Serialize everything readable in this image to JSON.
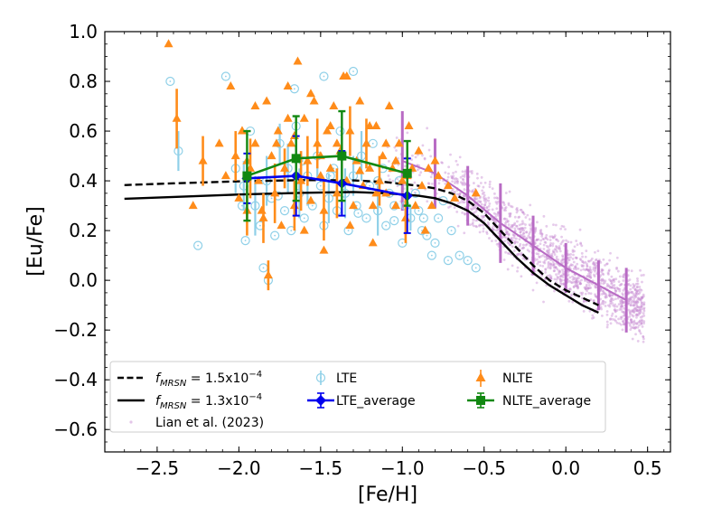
{
  "chart_data": {
    "type": "scatter",
    "xlabel": "[Fe/H]",
    "ylabel": "[Eu/Fe]",
    "xlim": [
      -2.82,
      0.64
    ],
    "ylim": [
      -0.69,
      1.0
    ],
    "xticks": [
      -2.5,
      -2.0,
      -1.5,
      -1.0,
      -0.5,
      0.0,
      0.5
    ],
    "xtick_labels": [
      "−2.5",
      "−2.0",
      "−1.5",
      "−1.0",
      "−0.5",
      "0.0",
      "0.5"
    ],
    "yticks": [
      -0.6,
      -0.4,
      -0.2,
      0.0,
      0.2,
      0.4,
      0.6,
      0.8,
      1.0
    ],
    "ytick_labels": [
      "−0.6",
      "−0.4",
      "−0.2",
      "0.0",
      "0.2",
      "0.4",
      "0.6",
      "0.8",
      "1.0"
    ],
    "legend_position": "lower-left",
    "colors": {
      "lte": "#8fd0e8",
      "nlte": "#ff8c1a",
      "lte_average": "#0000ee",
      "nlte_average": "#118811",
      "lian": "#c88bd2",
      "lian_line": "#b86bc4",
      "model": "#000000"
    },
    "series": [
      {
        "name": "f_MRSN = 1.5x10^-4",
        "legend_prefix": "f",
        "legend_sub": "MRSN",
        "legend_text": " = 1.5x10",
        "legend_sup": "−4",
        "style": "dashed",
        "x": [
          -2.7,
          -2.4,
          -2.0,
          -1.6,
          -1.3,
          -1.1,
          -0.9,
          -0.8,
          -0.7,
          -0.6,
          -0.5,
          -0.4,
          -0.3,
          -0.2,
          -0.1,
          0.0,
          0.1,
          0.2
        ],
        "y": [
          0.383,
          0.39,
          0.398,
          0.403,
          0.402,
          0.395,
          0.38,
          0.37,
          0.35,
          0.32,
          0.27,
          0.2,
          0.13,
          0.06,
          0.0,
          -0.04,
          -0.07,
          -0.1
        ]
      },
      {
        "name": "f_MRSN = 1.3x10^-4",
        "legend_prefix": "f",
        "legend_sub": "MRSN",
        "legend_text": " = 1.3x10",
        "legend_sup": "−4",
        "style": "solid",
        "x": [
          -2.7,
          -2.4,
          -2.0,
          -1.6,
          -1.3,
          -1.1,
          -0.9,
          -0.8,
          -0.7,
          -0.6,
          -0.5,
          -0.4,
          -0.3,
          -0.2,
          -0.1,
          0.0,
          0.1,
          0.2
        ],
        "y": [
          0.328,
          0.335,
          0.345,
          0.352,
          0.355,
          0.35,
          0.34,
          0.33,
          0.31,
          0.28,
          0.23,
          0.16,
          0.09,
          0.03,
          -0.02,
          -0.06,
          -0.1,
          -0.13
        ]
      },
      {
        "name": "Lian et al. (2023)",
        "type": "scatter-cloud",
        "binned_x": [
          -1.0,
          -0.8,
          -0.6,
          -0.4,
          -0.2,
          0.0,
          0.2,
          0.37
        ],
        "binned_y": [
          0.48,
          0.43,
          0.34,
          0.23,
          0.14,
          0.05,
          -0.02,
          -0.08
        ],
        "binned_err": [
          0.2,
          0.14,
          0.12,
          0.16,
          0.12,
          0.1,
          0.1,
          0.13
        ]
      },
      {
        "name": "LTE",
        "type": "scatter-errorbar",
        "marker": "open-circle-dot",
        "x": [
          -2.42,
          -2.37,
          -2.25,
          -2.08,
          -2.02,
          -1.97,
          -1.93,
          -1.9,
          -1.87,
          -1.85,
          -1.83,
          -1.8,
          -1.78,
          -1.75,
          -1.72,
          -1.7,
          -1.68,
          -1.65,
          -1.63,
          -1.6,
          -1.58,
          -1.55,
          -1.52,
          -1.5,
          -1.48,
          -1.45,
          -1.42,
          -1.4,
          -1.38,
          -1.35,
          -1.33,
          -1.3,
          -1.28,
          -1.25,
          -1.22,
          -1.2,
          -1.18,
          -1.15,
          -1.12,
          -1.1,
          -1.08,
          -1.05,
          -1.02,
          -1.0,
          -0.98,
          -0.95,
          -0.92,
          -0.9,
          -0.88,
          -0.85,
          -0.82,
          -0.8,
          -0.78,
          -0.75,
          -0.72,
          -0.7,
          -0.65,
          -0.6,
          -0.55,
          -1.96,
          -1.82,
          -1.66,
          -1.48,
          -1.3,
          -1.15,
          -1.98,
          -1.76,
          -1.61,
          -1.44,
          -1.27,
          -1.05,
          -0.87
        ],
        "y": [
          0.8,
          0.52,
          0.14,
          0.82,
          0.45,
          0.38,
          0.6,
          0.3,
          0.22,
          0.05,
          0.4,
          0.33,
          0.18,
          0.55,
          0.28,
          0.45,
          0.2,
          0.62,
          0.35,
          0.25,
          0.42,
          0.3,
          0.5,
          0.38,
          0.22,
          0.33,
          0.45,
          0.28,
          0.6,
          0.35,
          0.2,
          0.42,
          0.3,
          0.5,
          0.25,
          0.38,
          0.55,
          0.28,
          0.45,
          0.22,
          0.35,
          0.3,
          0.4,
          0.15,
          0.3,
          0.25,
          0.35,
          0.28,
          0.2,
          0.18,
          0.1,
          0.15,
          0.25,
          0.32,
          0.08,
          0.2,
          0.1,
          0.08,
          0.05,
          0.16,
          0.0,
          0.77,
          0.82,
          0.84,
          0.4,
          0.3,
          0.34,
          0.48,
          0.42,
          0.27,
          0.24,
          0.25
        ],
        "err": [
          0.0,
          0.08,
          0.0,
          0.0,
          0.1,
          0.1,
          0.0,
          0.12,
          0.0,
          0.0,
          0.1,
          0.0,
          0.0,
          0.08,
          0.0,
          0.1,
          0.0,
          0.0,
          0.1,
          0.0,
          0.12,
          0.0,
          0.1,
          0.0,
          0.0,
          0.1,
          0.0,
          0.0,
          0.0,
          0.1,
          0.0,
          0.08,
          0.0,
          0.1,
          0.0,
          0.0,
          0.0,
          0.1,
          0.0,
          0.0,
          0.0,
          0.0,
          0.0,
          0.0,
          0.0,
          0.05,
          0.0,
          0.0,
          0.0,
          0.0,
          0.0,
          0.0,
          0.0,
          0.0,
          0.0,
          0.0,
          0.0,
          0.0,
          0.0,
          0.0,
          0.0,
          0.0,
          0.0,
          0.0,
          0.0,
          0.0,
          0.0,
          0.0,
          0.0,
          0.0,
          0.0,
          0.0
        ]
      },
      {
        "name": "NLTE",
        "type": "scatter-errorbar",
        "marker": "triangle",
        "x": [
          -2.43,
          -2.38,
          -2.28,
          -2.22,
          -2.12,
          -2.08,
          -2.05,
          -2.02,
          -2.0,
          -1.98,
          -1.95,
          -1.93,
          -1.9,
          -1.88,
          -1.85,
          -1.83,
          -1.8,
          -1.78,
          -1.76,
          -1.74,
          -1.72,
          -1.7,
          -1.68,
          -1.66,
          -1.64,
          -1.62,
          -1.6,
          -1.58,
          -1.56,
          -1.54,
          -1.52,
          -1.5,
          -1.48,
          -1.46,
          -1.44,
          -1.42,
          -1.4,
          -1.38,
          -1.36,
          -1.34,
          -1.32,
          -1.3,
          -1.28,
          -1.26,
          -1.24,
          -1.22,
          -1.2,
          -1.18,
          -1.16,
          -1.14,
          -1.12,
          -1.1,
          -1.08,
          -1.06,
          -1.04,
          -1.02,
          -1.0,
          -0.98,
          -0.96,
          -0.94,
          -0.92,
          -0.9,
          -0.88,
          -0.86,
          -0.84,
          -0.82,
          -0.8,
          -0.78,
          -0.72,
          -0.68,
          -0.55,
          -1.98,
          -1.95,
          -1.9,
          -1.82,
          -1.77,
          -1.7,
          -1.66,
          -1.56,
          -1.5,
          -1.44,
          -1.4,
          -1.34,
          -1.26,
          -1.2,
          -1.16,
          -1.1,
          -1.04,
          -0.97,
          -1.86,
          -1.6,
          -1.48,
          -1.32,
          -1.18
        ],
        "y": [
          0.95,
          0.65,
          0.3,
          0.48,
          0.55,
          0.42,
          0.78,
          0.5,
          0.33,
          0.6,
          0.28,
          0.45,
          0.55,
          0.4,
          0.25,
          0.72,
          0.5,
          0.35,
          0.6,
          0.22,
          0.45,
          0.78,
          0.55,
          0.3,
          0.88,
          0.4,
          0.65,
          0.48,
          0.32,
          0.72,
          0.55,
          0.42,
          0.28,
          0.6,
          0.45,
          0.7,
          0.35,
          0.52,
          0.82,
          0.4,
          0.6,
          0.3,
          0.48,
          0.72,
          0.38,
          0.55,
          0.45,
          0.3,
          0.62,
          0.4,
          0.5,
          0.35,
          0.7,
          0.45,
          0.3,
          0.55,
          0.4,
          0.25,
          0.62,
          0.45,
          0.3,
          0.52,
          0.38,
          0.2,
          0.45,
          0.3,
          0.48,
          0.42,
          0.38,
          0.33,
          0.35,
          0.6,
          0.48,
          0.7,
          0.02,
          0.55,
          0.65,
          0.58,
          0.75,
          0.5,
          0.62,
          0.55,
          0.82,
          0.44,
          0.62,
          0.35,
          0.55,
          0.48,
          0.42,
          0.28,
          0.2,
          0.12,
          0.22,
          0.15
        ],
        "err": [
          0.0,
          0.12,
          0.0,
          0.1,
          0.0,
          0.0,
          0.0,
          0.1,
          0.0,
          0.0,
          0.1,
          0.12,
          0.0,
          0.0,
          0.1,
          0.0,
          0.0,
          0.12,
          0.0,
          0.0,
          0.08,
          0.0,
          0.0,
          0.1,
          0.0,
          0.12,
          0.0,
          0.1,
          0.0,
          0.0,
          0.1,
          0.0,
          0.12,
          0.0,
          0.0,
          0.0,
          0.1,
          0.0,
          0.0,
          0.0,
          0.1,
          0.0,
          0.0,
          0.0,
          0.0,
          0.1,
          0.0,
          0.0,
          0.0,
          0.1,
          0.0,
          0.0,
          0.0,
          0.0,
          0.0,
          0.0,
          0.0,
          0.1,
          0.0,
          0.0,
          0.0,
          0.0,
          0.0,
          0.0,
          0.0,
          0.0,
          0.0,
          0.0,
          0.0,
          0.0,
          0.0,
          0.0,
          0.0,
          0.0,
          0.06,
          0.0,
          0.0,
          0.0,
          0.0,
          0.0,
          0.0,
          0.0,
          0.0,
          0.0,
          0.0,
          0.0,
          0.0,
          0.0,
          0.0,
          0.0,
          0.0,
          0.0,
          0.0,
          0.0
        ]
      },
      {
        "name": "LTE_average",
        "type": "line-errorbar",
        "marker": "diamond",
        "x": [
          -1.95,
          -1.65,
          -1.37,
          -0.97
        ],
        "y": [
          0.41,
          0.42,
          0.39,
          0.34
        ],
        "err": [
          0.1,
          0.16,
          0.13,
          0.15
        ]
      },
      {
        "name": "NLTE_average",
        "type": "line-errorbar",
        "marker": "square",
        "x": [
          -1.95,
          -1.65,
          -1.37,
          -0.97
        ],
        "y": [
          0.42,
          0.49,
          0.5,
          0.43
        ],
        "err": [
          0.18,
          0.17,
          0.18,
          0.13
        ]
      }
    ]
  }
}
